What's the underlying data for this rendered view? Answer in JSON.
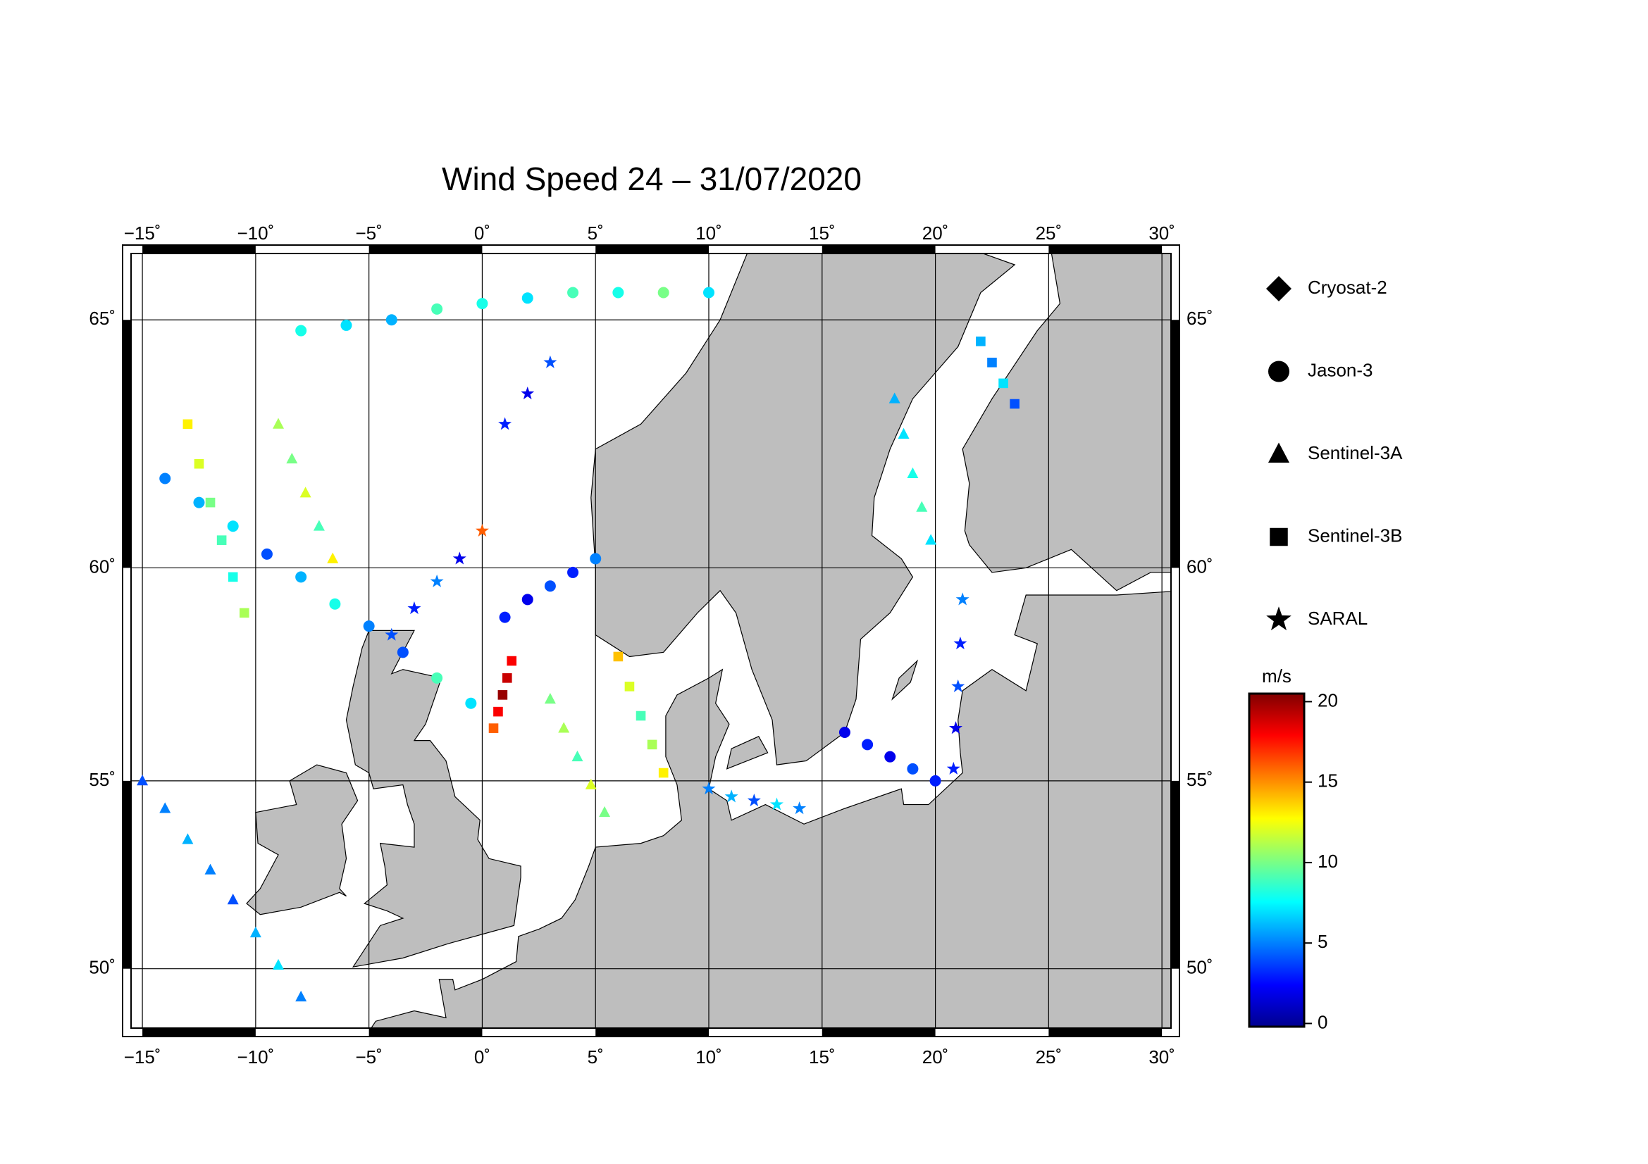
{
  "chart_data": {
    "type": "scatter",
    "title": "Wind Speed 24 – 31/07/2020",
    "projection": "mercator",
    "xlim": [
      -15.5,
      30.4
    ],
    "ylim": [
      48.3,
      66.2
    ],
    "xticks": [
      {
        "value": -15,
        "label": "−15˚"
      },
      {
        "value": -10,
        "label": "−10˚"
      },
      {
        "value": -5,
        "label": "−5˚"
      },
      {
        "value": 0,
        "label": "0˚"
      },
      {
        "value": 5,
        "label": "5˚"
      },
      {
        "value": 10,
        "label": "10˚"
      },
      {
        "value": 15,
        "label": "15˚"
      },
      {
        "value": 20,
        "label": "20˚"
      },
      {
        "value": 25,
        "label": "25˚"
      },
      {
        "value": 30,
        "label": "30˚"
      }
    ],
    "yticks": [
      {
        "value": 50,
        "label": "50˚"
      },
      {
        "value": 55,
        "label": "55˚"
      },
      {
        "value": 60,
        "label": "60˚"
      },
      {
        "value": 65,
        "label": "65˚"
      }
    ],
    "grid": true,
    "colorbar": {
      "label": "m/s",
      "colormap": "jet",
      "clim": [
        -0.2,
        20.5
      ],
      "ticks": [
        0,
        5,
        10,
        15,
        20
      ]
    },
    "series": [
      {
        "name": "Cryosat-2",
        "marker": "diamond",
        "x": [],
        "y": [],
        "values": []
      },
      {
        "name": "Jason-3",
        "marker": "circle",
        "x": [
          -14,
          -12.5,
          -11,
          -9.5,
          -8,
          -6.5,
          -5,
          -3.5,
          -2,
          -0.5,
          1,
          2,
          3,
          4,
          5,
          16,
          17,
          18,
          19,
          20,
          -8,
          -6,
          -4,
          -2,
          0,
          2,
          4,
          6,
          8,
          10
        ],
        "y": [
          61.9,
          61.4,
          60.9,
          60.3,
          59.8,
          59.2,
          58.7,
          58.1,
          57.5,
          56.9,
          58.9,
          59.3,
          59.6,
          59.9,
          60.2,
          56.2,
          55.9,
          55.6,
          55.3,
          55,
          64.8,
          64.9,
          65,
          65.2,
          65.3,
          65.4,
          65.5,
          65.5,
          65.5,
          65.5
        ],
        "values": [
          5,
          6,
          7,
          4,
          6,
          8,
          5,
          4,
          9,
          7,
          3,
          2,
          4,
          3,
          5,
          2,
          3,
          2,
          4,
          3,
          8,
          7,
          6,
          9,
          8,
          7,
          9,
          8,
          10,
          7
        ]
      },
      {
        "name": "Sentinel-3A",
        "marker": "triangle",
        "x": [
          -15,
          -14,
          -13,
          -12,
          -11,
          -10,
          -9,
          -8,
          18.2,
          18.6,
          19,
          19.4,
          19.8,
          3,
          3.6,
          4.2,
          4.8,
          5.4,
          -9,
          -8.4,
          -7.8,
          -7.2,
          -6.6
        ],
        "y": [
          55,
          54.3,
          53.5,
          52.7,
          51.9,
          51,
          50.1,
          49.2,
          63.5,
          62.8,
          62,
          61.3,
          60.6,
          57,
          56.3,
          55.6,
          54.9,
          54.2,
          63,
          62.3,
          61.6,
          60.9,
          60.2
        ],
        "values": [
          4,
          5,
          6,
          5,
          4,
          6,
          7,
          5,
          6,
          7,
          8,
          9,
          7,
          10,
          11,
          9,
          12,
          10,
          11,
          10,
          12,
          9,
          13
        ]
      },
      {
        "name": "Sentinel-3B",
        "marker": "square",
        "x": [
          1.3,
          1.1,
          0.9,
          0.7,
          0.5,
          -13,
          -12.5,
          -12,
          -11.5,
          -11,
          -10.5,
          6,
          6.5,
          7,
          7.5,
          8,
          22,
          22.5,
          23,
          23.5
        ],
        "y": [
          57.9,
          57.5,
          57.1,
          56.7,
          56.3,
          63,
          62.2,
          61.4,
          60.6,
          59.8,
          59,
          58,
          57.3,
          56.6,
          55.9,
          55.2,
          64.6,
          64.2,
          63.8,
          63.4
        ],
        "values": [
          18,
          19,
          20,
          18,
          16,
          13,
          12,
          10,
          9,
          8,
          11,
          14,
          12,
          9,
          11,
          13,
          6,
          5,
          7,
          4
        ]
      },
      {
        "name": "SARAL",
        "marker": "star",
        "x": [
          -4,
          -3,
          -2,
          -1,
          0,
          1,
          2,
          3,
          20.8,
          20.9,
          21,
          21.1,
          21.2,
          10,
          11,
          12,
          13,
          14
        ],
        "y": [
          58.5,
          59.1,
          59.7,
          60.2,
          60.8,
          63,
          63.6,
          64.2,
          55.3,
          56.3,
          57.3,
          58.3,
          59.3,
          54.8,
          54.6,
          54.5,
          54.4,
          54.3
        ],
        "values": [
          4,
          3,
          5,
          2,
          16,
          3,
          2,
          4,
          3,
          2,
          4,
          3,
          5,
          5,
          6,
          4,
          7,
          5
        ]
      }
    ]
  }
}
